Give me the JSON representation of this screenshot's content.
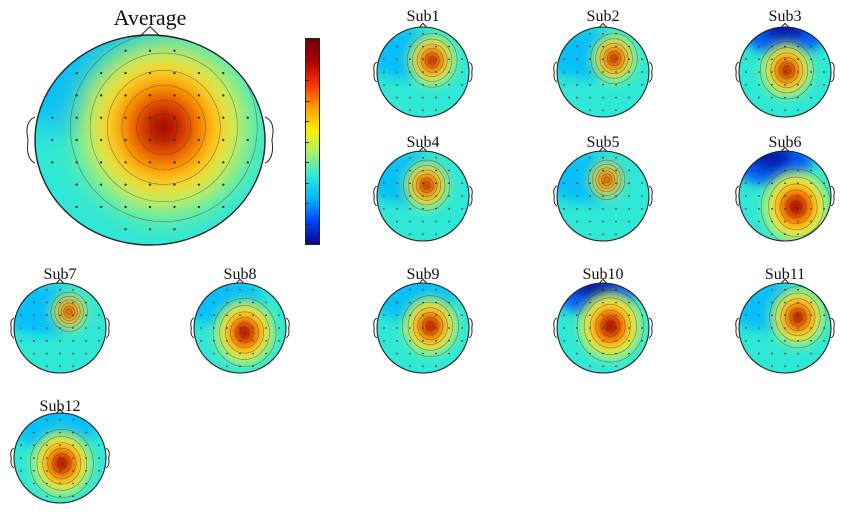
{
  "figure": {
    "average_title": "Average",
    "colormap": [
      "#08088a",
      "#0044ff",
      "#00b8ff",
      "#2fe8d6",
      "#a8f06a",
      "#ffee00",
      "#ff9a00",
      "#ff3300",
      "#b00000",
      "#6a0000"
    ]
  },
  "maps": [
    {
      "key": "average",
      "title": "Average",
      "hot": [
        0.56,
        0.44
      ],
      "hot_r": 0.45,
      "cold": [
        0.3,
        0.2
      ],
      "cold_level": 0.28
    },
    {
      "key": "sub1",
      "title": "Sub1",
      "hot": [
        0.6,
        0.37
      ],
      "hot_r": 0.3,
      "cold": [
        0.3,
        0.3
      ],
      "cold_level": 0.35
    },
    {
      "key": "sub2",
      "title": "Sub2",
      "hot": [
        0.62,
        0.35
      ],
      "hot_r": 0.28,
      "cold": [
        0.3,
        0.3
      ],
      "cold_level": 0.38
    },
    {
      "key": "sub3",
      "title": "Sub3",
      "hot": [
        0.52,
        0.48
      ],
      "hot_r": 0.32,
      "cold": [
        0.5,
        0.05
      ],
      "cold_level": 0.12
    },
    {
      "key": "sub4",
      "title": "Sub4",
      "hot": [
        0.54,
        0.38
      ],
      "hot_r": 0.28,
      "cold": [
        0.3,
        0.3
      ],
      "cold_level": 0.35
    },
    {
      "key": "sub5",
      "title": "Sub5",
      "hot": [
        0.54,
        0.32
      ],
      "hot_r": 0.22,
      "cold": [
        0.3,
        0.3
      ],
      "cold_level": 0.38
    },
    {
      "key": "sub6",
      "title": "Sub6",
      "hot": [
        0.62,
        0.62
      ],
      "hot_r": 0.42,
      "cold": [
        0.35,
        0.1
      ],
      "cold_level": 0.1
    },
    {
      "key": "sub7",
      "title": "Sub7",
      "hot": [
        0.6,
        0.32
      ],
      "hot_r": 0.22,
      "cold": [
        0.3,
        0.3
      ],
      "cold_level": 0.4
    },
    {
      "key": "sub8",
      "title": "Sub8",
      "hot": [
        0.55,
        0.55
      ],
      "hot_r": 0.38,
      "cold": [
        0.3,
        0.2
      ],
      "cold_level": 0.15
    },
    {
      "key": "sub9",
      "title": "Sub9",
      "hot": [
        0.58,
        0.48
      ],
      "hot_r": 0.34,
      "cold": [
        0.4,
        0.15
      ],
      "cold_level": 0.2
    },
    {
      "key": "sub10",
      "title": "Sub10",
      "hot": [
        0.58,
        0.48
      ],
      "hot_r": 0.4,
      "cold": [
        0.42,
        0.08
      ],
      "cold_level": 0.05
    },
    {
      "key": "sub11",
      "title": "Sub11",
      "hot": [
        0.64,
        0.38
      ],
      "hot_r": 0.34,
      "cold": [
        0.3,
        0.25
      ],
      "cold_level": 0.25
    },
    {
      "key": "sub12",
      "title": "Sub12",
      "hot": [
        0.52,
        0.56
      ],
      "hot_r": 0.38,
      "cold": [
        0.45,
        0.15
      ],
      "cold_level": 0.2
    }
  ]
}
